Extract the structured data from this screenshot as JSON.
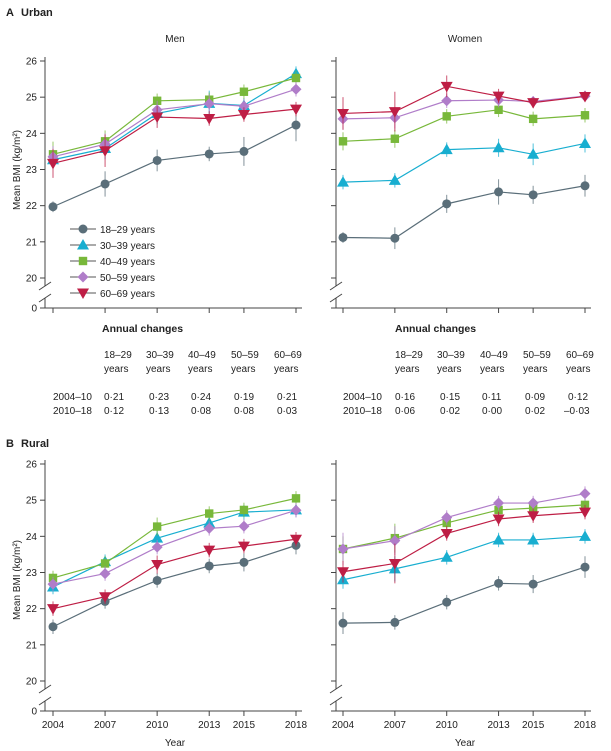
{
  "panels": {
    "A": {
      "letter": "A",
      "title": "Urban"
    },
    "B": {
      "letter": "B",
      "title": "Rural"
    }
  },
  "columns": {
    "men": "Men",
    "women": "Women"
  },
  "y_axis_label": "Mean BMI (kg/m²)",
  "x_axis_label": "Year",
  "axis_zero": "0",
  "x_ticks": [
    "2004",
    "2007",
    "2010",
    "2013",
    "2015",
    "2018"
  ],
  "legend": [
    {
      "label": "18–29 years",
      "color": "#5a6e79",
      "marker": "circle"
    },
    {
      "label": "30–39 years",
      "color": "#18aed0",
      "marker": "triangle-up"
    },
    {
      "label": "40–49 years",
      "color": "#78b83a",
      "marker": "square"
    },
    {
      "label": "50–59 years",
      "color": "#b07dc9",
      "marker": "diamond"
    },
    {
      "label": "60–69 years",
      "color": "#be1e45",
      "marker": "triangle-down"
    }
  ],
  "annual_changes": {
    "title": "Annual changes",
    "headers": [
      [
        "18–29",
        "years"
      ],
      [
        "30–39",
        "years"
      ],
      [
        "40–49",
        "years"
      ],
      [
        "50–59",
        "years"
      ],
      [
        "60–69",
        "years"
      ]
    ],
    "row_labels": [
      "2004–10",
      "2010–18"
    ],
    "men": [
      [
        "0·21",
        "0·23",
        "0·24",
        "0·19",
        "0·21"
      ],
      [
        "0·12",
        "0·13",
        "0·08",
        "0·08",
        "0·03"
      ]
    ],
    "women": [
      [
        "0·16",
        "0·15",
        "0·11",
        "0·09",
        "0·12"
      ],
      [
        "0·06",
        "0·02",
        "0·00",
        "0·02",
        "–0·03"
      ]
    ]
  },
  "chart_data": [
    {
      "type": "line",
      "panel": "A",
      "title": "Men",
      "ylabel": "Mean BMI (kg/m²)",
      "yticks": [
        20,
        21,
        22,
        23,
        24,
        25,
        26
      ],
      "ylim": [
        20,
        26
      ],
      "x": [
        2004,
        2007,
        2010,
        2013,
        2015,
        2018
      ],
      "series": [
        {
          "name": "18–29 years",
          "values": [
            21.97,
            22.6,
            23.25,
            23.43,
            23.5,
            24.23
          ],
          "err": [
            0.15,
            0.35,
            0.3,
            0.2,
            0.4,
            0.45
          ]
        },
        {
          "name": "30–39 years",
          "values": [
            23.27,
            23.58,
            24.55,
            24.83,
            24.77,
            25.65
          ],
          "err": [
            0.25,
            0.3,
            0.3,
            0.35,
            0.2,
            0.2
          ]
        },
        {
          "name": "40–49 years",
          "values": [
            23.42,
            23.78,
            24.9,
            24.93,
            25.15,
            25.53
          ],
          "err": [
            0.35,
            0.3,
            0.2,
            0.2,
            0.2,
            0.2
          ]
        },
        {
          "name": "50–59 years",
          "values": [
            23.35,
            23.7,
            24.65,
            24.82,
            24.75,
            25.22
          ],
          "err": [
            0.3,
            0.3,
            0.25,
            0.25,
            0.2,
            0.2
          ]
        },
        {
          "name": "60–69 years",
          "values": [
            23.17,
            23.52,
            24.45,
            24.41,
            24.52,
            24.67
          ],
          "err": [
            0.4,
            0.45,
            0.3,
            0.2,
            0.2,
            0.2
          ]
        }
      ]
    },
    {
      "type": "line",
      "panel": "A",
      "title": "Women",
      "yticks": [
        20,
        21,
        22,
        23,
        24,
        25,
        26
      ],
      "ylim": [
        20,
        26
      ],
      "x": [
        2004,
        2007,
        2010,
        2013,
        2015,
        2018
      ],
      "series": [
        {
          "name": "18–29 years",
          "values": [
            21.12,
            21.1,
            22.05,
            22.38,
            22.3,
            22.55
          ],
          "err": [
            0.15,
            0.3,
            0.25,
            0.35,
            0.25,
            0.3
          ]
        },
        {
          "name": "30–39 years",
          "values": [
            22.65,
            22.7,
            23.55,
            23.6,
            23.42,
            23.72
          ],
          "err": [
            0.2,
            0.2,
            0.2,
            0.25,
            0.3,
            0.25
          ]
        },
        {
          "name": "40–49 years",
          "values": [
            23.78,
            23.85,
            24.47,
            24.65,
            24.4,
            24.5
          ],
          "err": [
            0.25,
            0.25,
            0.2,
            0.2,
            0.2,
            0.2
          ]
        },
        {
          "name": "50–59 years",
          "values": [
            24.4,
            24.43,
            24.9,
            24.92,
            24.88,
            25.03
          ],
          "err": [
            0.3,
            0.3,
            0.2,
            0.2,
            0.15,
            0.15
          ]
        },
        {
          "name": "60–69 years",
          "values": [
            24.55,
            24.6,
            25.3,
            25.03,
            24.85,
            25.02
          ],
          "err": [
            0.45,
            0.55,
            0.3,
            0.2,
            0.15,
            0.15
          ]
        }
      ]
    },
    {
      "type": "line",
      "panel": "B",
      "title": "Men",
      "ylabel": "Mean BMI (kg/m²)",
      "yticks": [
        20,
        21,
        22,
        23,
        24,
        25,
        26
      ],
      "ylim": [
        20,
        26
      ],
      "x": [
        2004,
        2007,
        2010,
        2013,
        2015,
        2018
      ],
      "series": [
        {
          "name": "18–29 years",
          "values": [
            21.5,
            22.2,
            22.78,
            23.18,
            23.28,
            23.75
          ],
          "err": [
            0.2,
            0.2,
            0.2,
            0.2,
            0.25,
            0.25
          ]
        },
        {
          "name": "30–39 years",
          "values": [
            22.6,
            23.3,
            23.95,
            24.37,
            24.67,
            24.73
          ],
          "err": [
            0.2,
            0.2,
            0.25,
            0.25,
            0.2,
            0.2
          ]
        },
        {
          "name": "40–49 years",
          "values": [
            22.85,
            23.25,
            24.27,
            24.63,
            24.73,
            25.05
          ],
          "err": [
            0.2,
            0.2,
            0.25,
            0.2,
            0.2,
            0.2
          ]
        },
        {
          "name": "50–59 years",
          "values": [
            22.68,
            22.97,
            23.7,
            24.22,
            24.28,
            24.72
          ],
          "err": [
            0.2,
            0.2,
            0.2,
            0.2,
            0.2,
            0.2
          ]
        },
        {
          "name": "60–69 years",
          "values": [
            22.0,
            22.33,
            23.22,
            23.62,
            23.73,
            23.92
          ],
          "err": [
            0.2,
            0.2,
            0.25,
            0.2,
            0.2,
            0.2
          ]
        }
      ]
    },
    {
      "type": "line",
      "panel": "B",
      "title": "Women",
      "yticks": [
        20,
        21,
        22,
        23,
        24,
        25,
        26
      ],
      "ylim": [
        20,
        26
      ],
      "x": [
        2004,
        2007,
        2010,
        2013,
        2015,
        2018
      ],
      "series": [
        {
          "name": "18–29 years",
          "values": [
            21.6,
            21.62,
            22.18,
            22.7,
            22.68,
            23.15
          ],
          "err": [
            0.3,
            0.2,
            0.2,
            0.2,
            0.25,
            0.3
          ]
        },
        {
          "name": "30–39 years",
          "values": [
            22.8,
            23.1,
            23.42,
            23.9,
            23.9,
            24.0
          ],
          "err": [
            0.25,
            0.35,
            0.2,
            0.2,
            0.2,
            0.2
          ]
        },
        {
          "name": "40–49 years",
          "values": [
            23.65,
            23.95,
            24.37,
            24.73,
            24.78,
            24.87
          ],
          "err": [
            0.35,
            0.4,
            0.2,
            0.2,
            0.2,
            0.2
          ]
        },
        {
          "name": "50–59 years",
          "values": [
            23.65,
            23.88,
            24.52,
            24.92,
            24.92,
            25.18
          ],
          "err": [
            0.45,
            0.4,
            0.2,
            0.2,
            0.2,
            0.2
          ]
        },
        {
          "name": "60–69 years",
          "values": [
            23.02,
            23.25,
            24.08,
            24.48,
            24.57,
            24.67
          ],
          "err": [
            0.3,
            0.55,
            0.2,
            0.2,
            0.2,
            0.2
          ]
        }
      ]
    }
  ]
}
